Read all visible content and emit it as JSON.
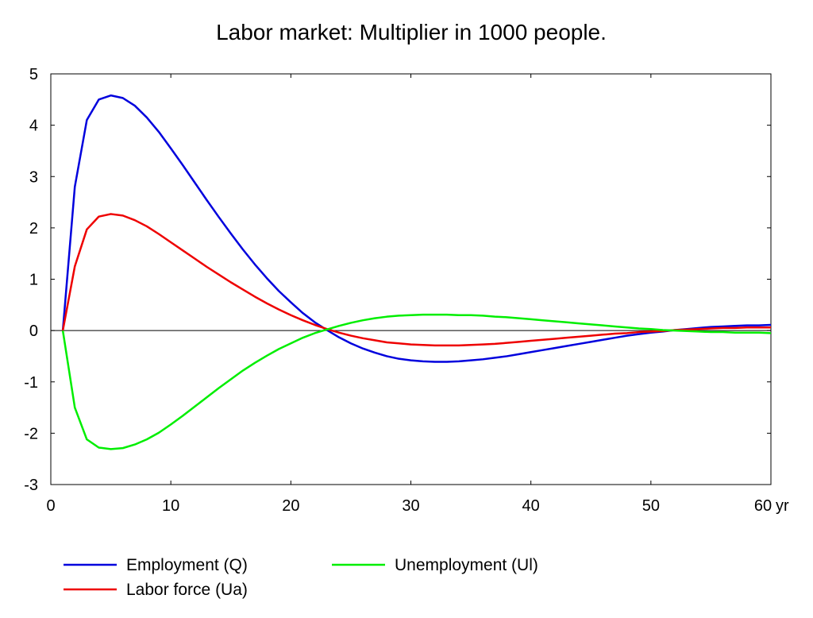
{
  "chart_data": {
    "type": "line",
    "title": "Labor market: Multiplier in 1000 people.",
    "xlabel": "",
    "ylabel": "",
    "x_unit_label": "yr",
    "xlim": [
      0,
      60
    ],
    "ylim": [
      -3,
      5
    ],
    "xticks": [
      0,
      10,
      20,
      30,
      40,
      50,
      60
    ],
    "yticks": [
      5,
      4,
      3,
      2,
      1,
      0,
      -1,
      -2,
      -3
    ],
    "grid": false,
    "zero_line": true,
    "legend_position": "bottom",
    "x": [
      1,
      2,
      3,
      4,
      5,
      6,
      7,
      8,
      9,
      10,
      11,
      12,
      13,
      14,
      15,
      16,
      17,
      18,
      19,
      20,
      21,
      22,
      23,
      24,
      25,
      26,
      27,
      28,
      29,
      30,
      31,
      32,
      33,
      34,
      35,
      36,
      37,
      38,
      39,
      40,
      41,
      42,
      43,
      44,
      45,
      46,
      47,
      48,
      49,
      50,
      51,
      52,
      53,
      54,
      55,
      56,
      57,
      58,
      59,
      60
    ],
    "series": [
      {
        "name": "Employment (Q)",
        "color": "#0000dd",
        "values": [
          0,
          2.8,
          4.1,
          4.5,
          4.58,
          4.53,
          4.38,
          4.15,
          3.87,
          3.55,
          3.22,
          2.88,
          2.54,
          2.21,
          1.89,
          1.58,
          1.29,
          1.02,
          0.77,
          0.55,
          0.34,
          0.16,
          0.01,
          -0.13,
          -0.25,
          -0.35,
          -0.43,
          -0.5,
          -0.55,
          -0.58,
          -0.6,
          -0.61,
          -0.61,
          -0.6,
          -0.58,
          -0.56,
          -0.53,
          -0.5,
          -0.46,
          -0.42,
          -0.38,
          -0.34,
          -0.3,
          -0.26,
          -0.22,
          -0.18,
          -0.14,
          -0.1,
          -0.07,
          -0.04,
          -0.02,
          0.01,
          0.03,
          0.05,
          0.07,
          0.08,
          0.09,
          0.1,
          0.1,
          0.11
        ]
      },
      {
        "name": "Labor force (Ua)",
        "color": "#ee0000",
        "values": [
          0,
          1.25,
          1.97,
          2.22,
          2.27,
          2.24,
          2.15,
          2.03,
          1.88,
          1.72,
          1.56,
          1.4,
          1.24,
          1.09,
          0.94,
          0.8,
          0.66,
          0.53,
          0.41,
          0.3,
          0.2,
          0.11,
          0.03,
          -0.04,
          -0.1,
          -0.15,
          -0.19,
          -0.23,
          -0.25,
          -0.27,
          -0.28,
          -0.29,
          -0.29,
          -0.29,
          -0.28,
          -0.27,
          -0.26,
          -0.24,
          -0.22,
          -0.2,
          -0.18,
          -0.16,
          -0.14,
          -0.12,
          -0.1,
          -0.08,
          -0.06,
          -0.05,
          -0.03,
          -0.02,
          -0.01,
          0.01,
          0.02,
          0.03,
          0.04,
          0.05,
          0.05,
          0.06,
          0.06,
          0.06
        ]
      },
      {
        "name": "Unemployment (Ul)",
        "color": "#00ee00",
        "values": [
          0,
          -1.5,
          -2.12,
          -2.28,
          -2.31,
          -2.29,
          -2.22,
          -2.12,
          -1.99,
          -1.83,
          -1.66,
          -1.48,
          -1.3,
          -1.12,
          -0.95,
          -0.78,
          -0.63,
          -0.49,
          -0.36,
          -0.25,
          -0.14,
          -0.05,
          0.02,
          0.09,
          0.15,
          0.2,
          0.24,
          0.27,
          0.29,
          0.3,
          0.31,
          0.31,
          0.31,
          0.3,
          0.3,
          0.29,
          0.27,
          0.26,
          0.24,
          0.22,
          0.2,
          0.18,
          0.16,
          0.14,
          0.12,
          0.1,
          0.08,
          0.06,
          0.04,
          0.03,
          0.01,
          0,
          -0.01,
          -0.02,
          -0.03,
          -0.03,
          -0.04,
          -0.04,
          -0.04,
          -0.05
        ]
      }
    ]
  }
}
